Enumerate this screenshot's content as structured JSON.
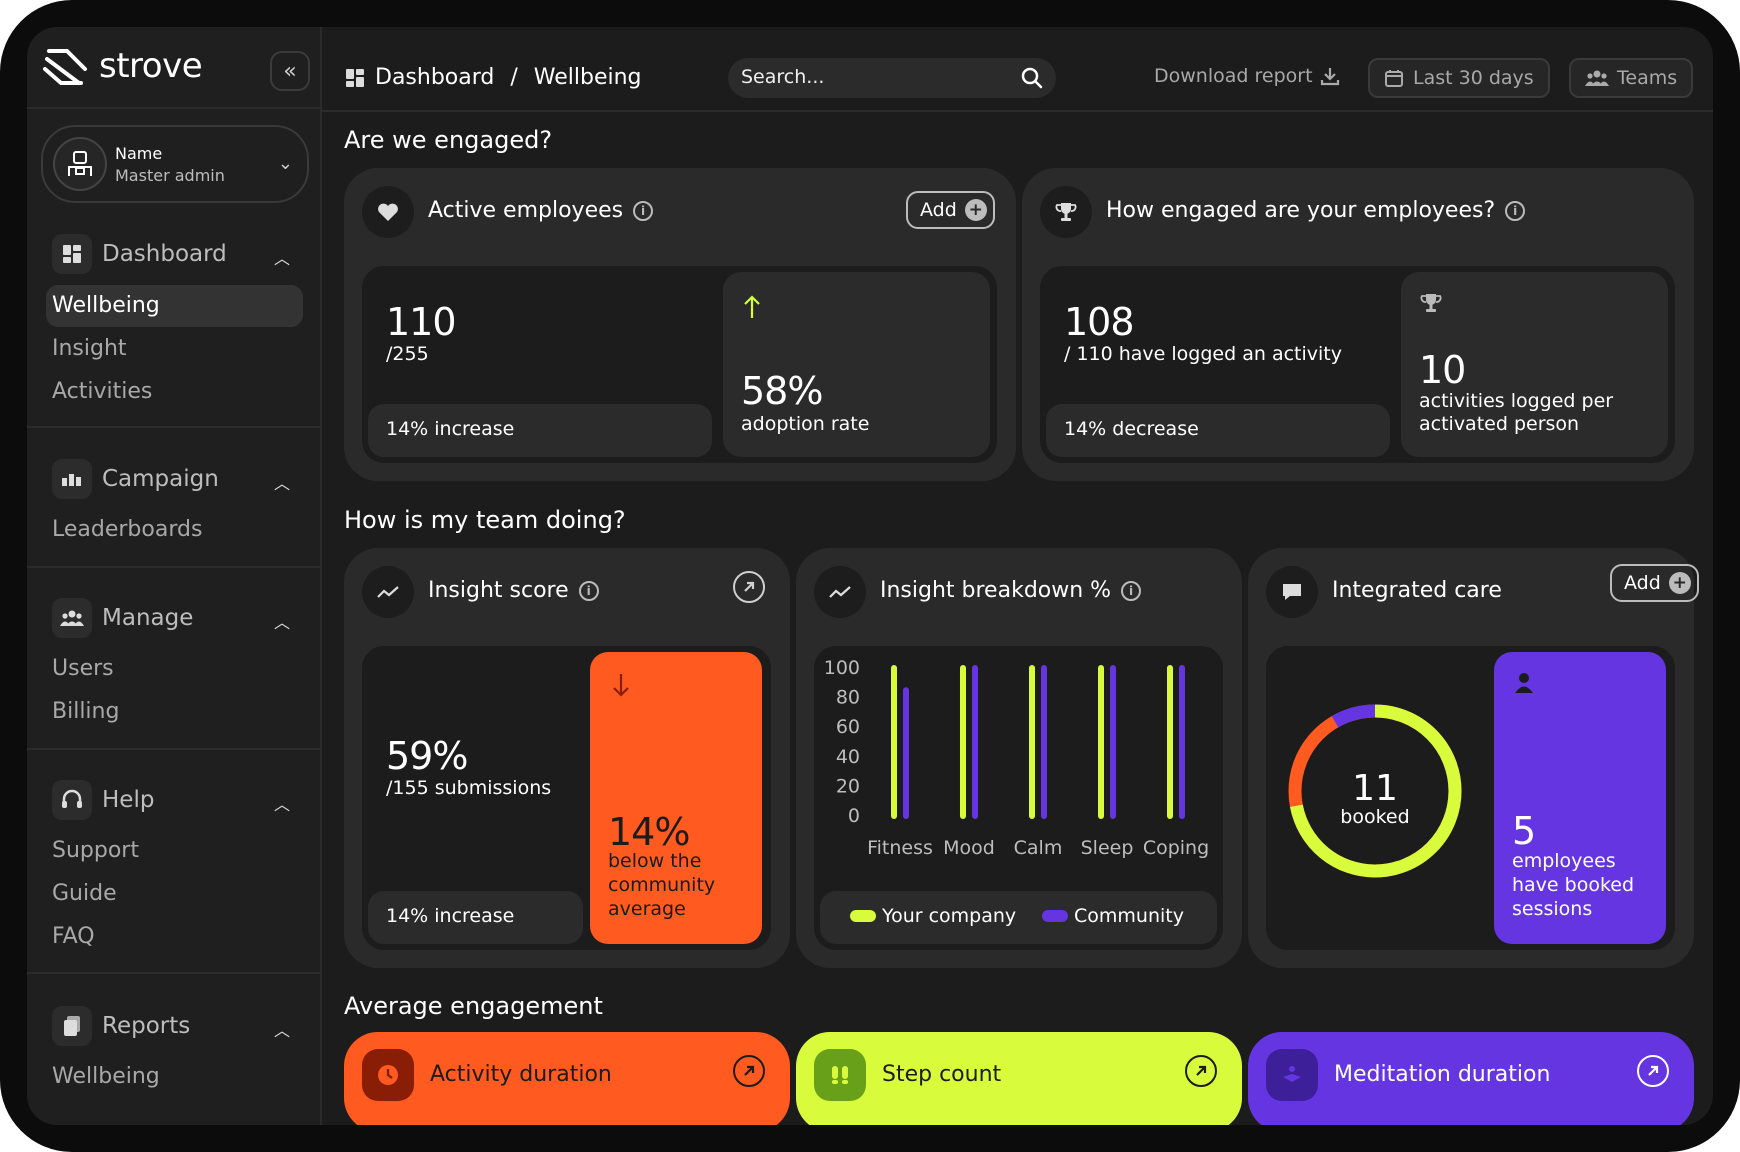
{
  "app": {
    "brand": "strove"
  },
  "user": {
    "name": "Name",
    "role": "Master admin"
  },
  "sidebar": {
    "sections": [
      {
        "label": "Dashboard",
        "items": [
          "Wellbeing",
          "Insight",
          "Activities"
        ]
      },
      {
        "label": "Campaign",
        "items": [
          "Leaderboards"
        ]
      },
      {
        "label": "Manage",
        "items": [
          "Users",
          "Billing"
        ]
      },
      {
        "label": "Help",
        "items": [
          "Support",
          "Guide",
          "FAQ"
        ]
      },
      {
        "label": "Reports",
        "items": [
          "Wellbeing"
        ]
      }
    ],
    "active_item": "Wellbeing"
  },
  "topbar": {
    "breadcrumb": [
      "Dashboard",
      "Wellbeing"
    ],
    "separator": "/",
    "search_placeholder": "Search...",
    "download_label": "Download report",
    "date_range_label": "Last 30 days",
    "teams_label": "Teams"
  },
  "engaged": {
    "heading": "Are we engaged?",
    "active_employees": {
      "title": "Active employees",
      "add_label": "Add",
      "value": "110",
      "total": "/255",
      "change": "14% increase",
      "rate_value": "58%",
      "rate_label": "adoption rate"
    },
    "how_engaged": {
      "title": "How engaged are your employees?",
      "value": "108",
      "subtext": "/ 110 have logged an activity",
      "change": "14% decrease",
      "per_person_value": "10",
      "per_person_label_1": "activities logged per",
      "per_person_label_2": "activated person"
    }
  },
  "team": {
    "heading": "How is my team doing?",
    "insight_score": {
      "title": "Insight score",
      "value": "59%",
      "subtext": "/155 submissions",
      "change": "14% increase",
      "comparison_value": "14%",
      "comparison_label_1": "below the",
      "comparison_label_2": "community",
      "comparison_label_3": "average"
    },
    "breakdown": {
      "title": "Insight breakdown %"
    },
    "integrated_care": {
      "title": "Integrated care",
      "add_label": "Add",
      "booked_value": "11",
      "booked_label": "booked",
      "donut_fraction_green": 0.72,
      "employees_value": "5",
      "employees_label_1": "employees",
      "employees_label_2": "have booked",
      "employees_label_3": "sessions"
    }
  },
  "average": {
    "heading": "Average engagement",
    "cards": [
      {
        "title": "Activity duration",
        "color": "#ff5a1f"
      },
      {
        "title": "Step count",
        "color": "#d8fb3c"
      },
      {
        "title": "Meditation duration",
        "color": "#6435e0"
      }
    ]
  },
  "colors": {
    "lime": "#d8fb3c",
    "purple": "#6435e0",
    "orange": "#ff5a1f"
  },
  "chart_data": {
    "type": "bar",
    "categories": [
      "Fitness",
      "Mood",
      "Calm",
      "Sleep",
      "Coping"
    ],
    "series": [
      {
        "name": "Your company",
        "color": "#d8fb3c",
        "values": [
          100,
          100,
          100,
          100,
          100
        ]
      },
      {
        "name": "Community",
        "color": "#6435e0",
        "values": [
          85,
          100,
          100,
          100,
          100
        ]
      }
    ],
    "yticks": [
      "100",
      "80",
      "60",
      "40",
      "20",
      "0"
    ],
    "ylim": [
      0,
      100
    ],
    "legend": "bottom"
  }
}
